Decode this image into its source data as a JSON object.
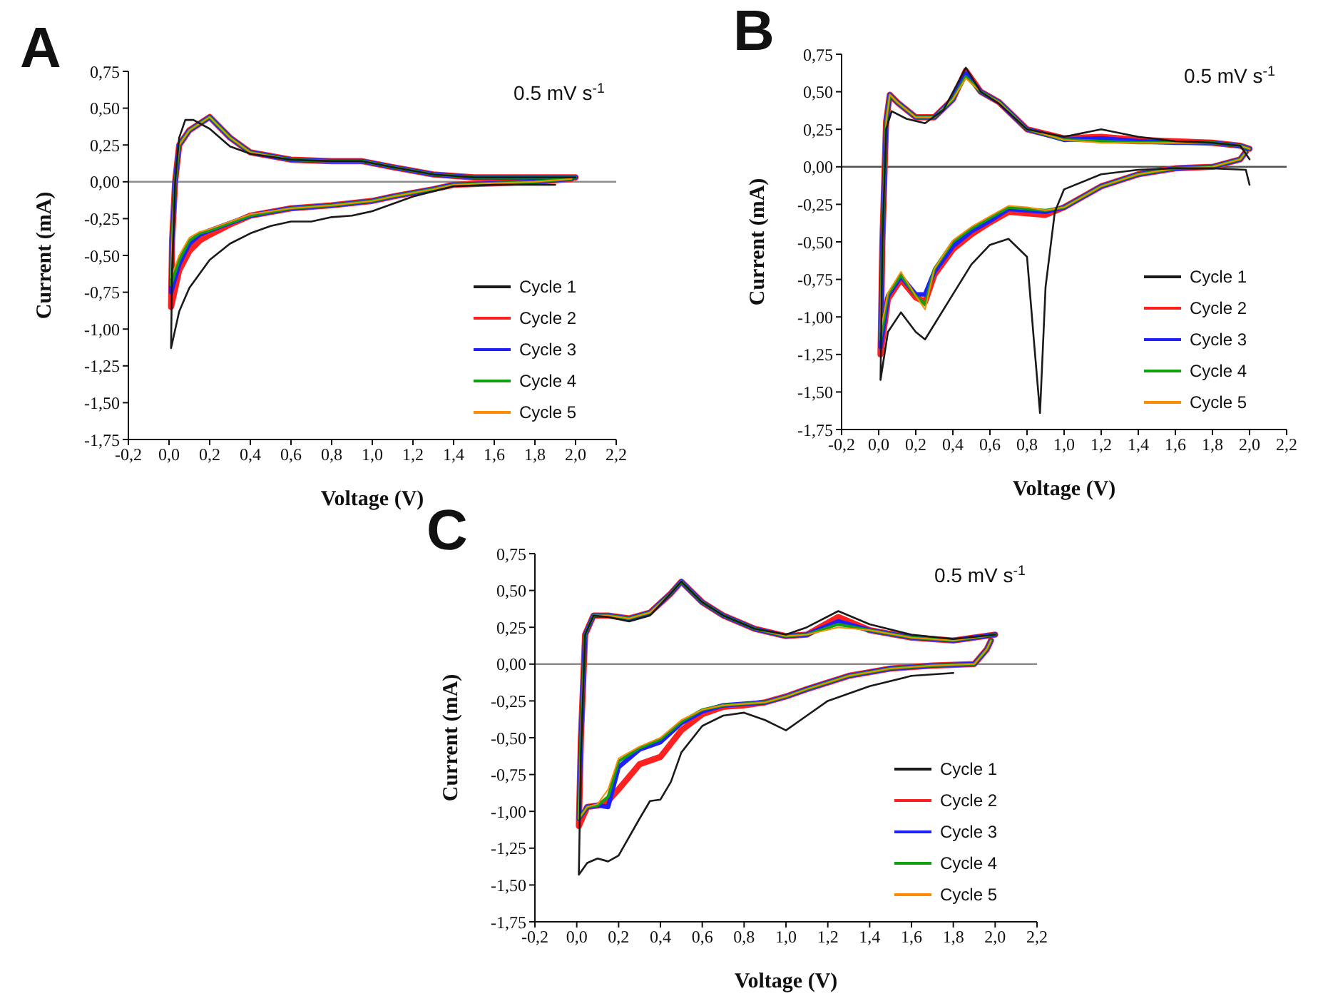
{
  "chart_data": [
    {
      "type": "line",
      "title": "A",
      "xlabel": "Voltage (V)",
      "ylabel": "Current (mA)",
      "annotations": [
        "0.5 mV s$^{-1}$"
      ],
      "legend": "bottom right",
      "xlim": [
        -0.2,
        2.2
      ],
      "xticks": [
        {
          "value": -0.2,
          "label": "-0,2"
        },
        {
          "value": 0,
          "label": "0,0"
        },
        {
          "value": 0.2,
          "label": "0,2"
        },
        {
          "value": 0.4,
          "label": "0,4"
        },
        {
          "value": 0.6,
          "label": "0,6"
        },
        {
          "value": 0.8,
          "label": "0,8"
        },
        {
          "value": 1.0,
          "label": "1,0"
        },
        {
          "value": 1.2,
          "label": "1,2"
        },
        {
          "value": 1.4,
          "label": "1,4"
        },
        {
          "value": 1.6,
          "label": "1,6"
        },
        {
          "value": 1.8,
          "label": "1,8"
        },
        {
          "value": 2.0,
          "label": "2,0"
        },
        {
          "value": 2.2,
          "label": "2,2"
        }
      ],
      "ylim": [
        -1.75,
        0.75
      ],
      "yticks": [
        {
          "value": -1.75,
          "label": "-1,75"
        },
        {
          "value": -1.5,
          "label": "-1,50"
        },
        {
          "value": -1.25,
          "label": "-1,25"
        },
        {
          "value": -1.0,
          "label": "-1,00"
        },
        {
          "value": -0.75,
          "label": "-0,75"
        },
        {
          "value": -0.5,
          "label": "-0,50"
        },
        {
          "value": -0.25,
          "label": "-0,25"
        },
        {
          "value": 0,
          "label": "0,00"
        },
        {
          "value": 0.25,
          "label": "0,25"
        },
        {
          "value": 0.5,
          "label": "0,50"
        },
        {
          "value": 0.75,
          "label": "0,75"
        }
      ],
      "ref_lines": [
        {
          "axis": "y",
          "value": 0,
          "color": "#8c8c8c"
        }
      ],
      "series": [
        {
          "name": "Cycle 1",
          "color": "#1a1a1a",
          "x": [
            1.9,
            1.6,
            1.4,
            1.2,
            1.1,
            1.0,
            0.9,
            0.8,
            0.7,
            0.6,
            0.5,
            0.4,
            0.3,
            0.2,
            0.1,
            0.05,
            0.01,
            0.015,
            0.03,
            0.05,
            0.08,
            0.12,
            0.2,
            0.3,
            0.4,
            0.6,
            0.8,
            0.95,
            1.1,
            1.3,
            1.5,
            1.8,
            2.0
          ],
          "values": [
            -0.02,
            -0.02,
            -0.03,
            -0.1,
            -0.15,
            -0.2,
            -0.23,
            -0.24,
            -0.27,
            -0.27,
            -0.3,
            -0.35,
            -0.42,
            -0.53,
            -0.72,
            -0.88,
            -1.13,
            -0.6,
            0.0,
            0.3,
            0.42,
            0.42,
            0.36,
            0.24,
            0.19,
            0.15,
            0.14,
            0.14,
            0.1,
            0.05,
            0.03,
            0.03,
            0.03
          ]
        },
        {
          "name": "Cycle 2",
          "color": "#ff2020",
          "x": [
            1.98,
            1.8,
            1.6,
            1.4,
            1.3,
            1.1,
            1.0,
            0.8,
            0.6,
            0.4,
            0.3,
            0.2,
            0.15,
            0.1,
            0.05,
            0.01,
            0.015,
            0.03,
            0.05,
            0.1,
            0.2,
            0.3,
            0.4,
            0.6,
            0.8,
            0.95,
            1.1,
            1.3,
            1.5,
            1.8,
            2.0
          ],
          "values": [
            0.02,
            0.0,
            -0.01,
            -0.02,
            -0.05,
            -0.1,
            -0.13,
            -0.16,
            -0.18,
            -0.23,
            -0.29,
            -0.36,
            -0.4,
            -0.47,
            -0.6,
            -0.85,
            -0.4,
            0.0,
            0.25,
            0.35,
            0.44,
            0.3,
            0.2,
            0.15,
            0.14,
            0.14,
            0.1,
            0.05,
            0.03,
            0.03,
            0.03
          ]
        },
        {
          "name": "Cycle 3",
          "color": "#2020ff",
          "x": [
            1.98,
            1.8,
            1.6,
            1.4,
            1.3,
            1.1,
            1.0,
            0.8,
            0.6,
            0.4,
            0.3,
            0.2,
            0.15,
            0.1,
            0.05,
            0.01,
            0.015,
            0.03,
            0.05,
            0.1,
            0.2,
            0.3,
            0.4,
            0.6,
            0.8,
            0.95,
            1.1,
            1.3,
            1.5,
            1.8,
            2.0
          ],
          "values": [
            0.02,
            0.0,
            -0.01,
            -0.02,
            -0.05,
            -0.1,
            -0.13,
            -0.16,
            -0.18,
            -0.23,
            -0.28,
            -0.33,
            -0.36,
            -0.42,
            -0.56,
            -0.75,
            -0.4,
            0.0,
            0.25,
            0.35,
            0.44,
            0.3,
            0.2,
            0.15,
            0.14,
            0.14,
            0.1,
            0.05,
            0.03,
            0.03,
            0.03
          ]
        },
        {
          "name": "Cycle 4",
          "color": "#10a010",
          "x": [
            1.98,
            1.8,
            1.6,
            1.4,
            1.3,
            1.1,
            1.0,
            0.8,
            0.6,
            0.4,
            0.3,
            0.2,
            0.15,
            0.1,
            0.05,
            0.01,
            0.015,
            0.03,
            0.05,
            0.1,
            0.2,
            0.3,
            0.4,
            0.6,
            0.8,
            0.95,
            1.1,
            1.3,
            1.5,
            1.8,
            2.0
          ],
          "values": [
            0.02,
            0.0,
            -0.01,
            -0.02,
            -0.05,
            -0.1,
            -0.13,
            -0.16,
            -0.18,
            -0.23,
            -0.28,
            -0.33,
            -0.35,
            -0.4,
            -0.53,
            -0.7,
            -0.4,
            0.0,
            0.25,
            0.35,
            0.44,
            0.3,
            0.2,
            0.15,
            0.14,
            0.14,
            0.1,
            0.05,
            0.03,
            0.03,
            0.03
          ]
        },
        {
          "name": "Cycle 5",
          "color": "#ff8c00",
          "x": [
            1.98,
            1.8,
            1.6,
            1.4,
            1.3,
            1.1,
            1.0,
            0.8,
            0.6,
            0.4,
            0.3,
            0.2,
            0.15,
            0.1,
            0.05,
            0.01,
            0.015,
            0.03,
            0.05,
            0.1,
            0.2,
            0.3,
            0.4,
            0.6,
            0.8,
            0.95,
            1.1,
            1.3,
            1.5,
            1.8,
            2.0
          ],
          "values": [
            0.02,
            0.0,
            -0.01,
            -0.02,
            -0.05,
            -0.1,
            -0.13,
            -0.16,
            -0.18,
            -0.22,
            -0.27,
            -0.32,
            -0.34,
            -0.38,
            -0.5,
            -0.65,
            -0.4,
            0.0,
            0.25,
            0.35,
            0.44,
            0.3,
            0.2,
            0.15,
            0.14,
            0.14,
            0.1,
            0.05,
            0.03,
            0.03,
            0.03
          ]
        }
      ]
    },
    {
      "type": "line",
      "title": "B",
      "xlabel": "Voltage (V)",
      "ylabel": "Current (mA)",
      "annotations": [
        "0.5 mV s$^{-1}$"
      ],
      "legend": "bottom right",
      "xlim": [
        -0.2,
        2.2
      ],
      "xticks": [
        {
          "value": -0.2,
          "label": "-0,2"
        },
        {
          "value": 0,
          "label": "0,0"
        },
        {
          "value": 0.2,
          "label": "0,2"
        },
        {
          "value": 0.4,
          "label": "0,4"
        },
        {
          "value": 0.6,
          "label": "0,6"
        },
        {
          "value": 0.8,
          "label": "0,8"
        },
        {
          "value": 1.0,
          "label": "1,0"
        },
        {
          "value": 1.2,
          "label": "1,2"
        },
        {
          "value": 1.4,
          "label": "1,4"
        },
        {
          "value": 1.6,
          "label": "1,6"
        },
        {
          "value": 1.8,
          "label": "1,8"
        },
        {
          "value": 2.0,
          "label": "2,0"
        },
        {
          "value": 2.2,
          "label": "2,2"
        }
      ],
      "ylim": [
        -1.75,
        0.75
      ],
      "yticks": [
        {
          "value": -1.75,
          "label": "-1,75"
        },
        {
          "value": -1.5,
          "label": "-1,50"
        },
        {
          "value": -1.25,
          "label": "-1,25"
        },
        {
          "value": -1.0,
          "label": "-1,00"
        },
        {
          "value": -0.75,
          "label": "-0,75"
        },
        {
          "value": -0.5,
          "label": "-0,50"
        },
        {
          "value": -0.25,
          "label": "-0,25"
        },
        {
          "value": 0,
          "label": "0,00"
        },
        {
          "value": 0.25,
          "label": "0,25"
        },
        {
          "value": 0.5,
          "label": "0,50"
        },
        {
          "value": 0.75,
          "label": "0,75"
        }
      ],
      "ref_lines": [
        {
          "axis": "y",
          "value": 0,
          "color": "#505050"
        }
      ],
      "series": [
        {
          "name": "Cycle 1",
          "color": "#1a1a1a",
          "x": [
            2.0,
            1.98,
            1.8,
            1.6,
            1.4,
            1.2,
            1.0,
            0.95,
            0.9,
            0.87,
            0.84,
            0.8,
            0.7,
            0.6,
            0.5,
            0.4,
            0.3,
            0.25,
            0.2,
            0.12,
            0.05,
            0.01,
            0.02,
            0.04,
            0.07,
            0.15,
            0.25,
            0.35,
            0.47,
            0.55,
            0.65,
            0.8,
            1.0,
            1.2,
            1.4,
            1.6,
            1.8,
            1.95,
            2.0
          ],
          "values": [
            -0.12,
            -0.02,
            -0.01,
            -0.01,
            -0.02,
            -0.05,
            -0.15,
            -0.3,
            -0.8,
            -1.64,
            -1.2,
            -0.6,
            -0.48,
            -0.52,
            -0.65,
            -0.85,
            -1.05,
            -1.15,
            -1.1,
            -0.97,
            -1.1,
            -1.42,
            -0.5,
            0.25,
            0.37,
            0.32,
            0.29,
            0.38,
            0.66,
            0.5,
            0.42,
            0.25,
            0.2,
            0.25,
            0.2,
            0.17,
            0.16,
            0.14,
            0.05
          ]
        },
        {
          "name": "Cycle 2",
          "color": "#ff2020",
          "x": [
            1.98,
            1.95,
            1.8,
            1.6,
            1.4,
            1.2,
            1.0,
            0.9,
            0.8,
            0.7,
            0.6,
            0.5,
            0.4,
            0.3,
            0.25,
            0.2,
            0.12,
            0.05,
            0.01,
            0.02,
            0.04,
            0.06,
            0.1,
            0.2,
            0.3,
            0.4,
            0.47,
            0.55,
            0.65,
            0.8,
            1.0,
            1.2,
            1.4,
            1.6,
            1.8,
            1.95,
            2.0
          ],
          "values": [
            0.1,
            0.05,
            0.0,
            -0.01,
            -0.05,
            -0.13,
            -0.27,
            -0.32,
            -0.31,
            -0.3,
            -0.37,
            -0.45,
            -0.55,
            -0.72,
            -0.9,
            -0.87,
            -0.75,
            -0.88,
            -1.25,
            -0.5,
            0.3,
            0.48,
            0.43,
            0.33,
            0.33,
            0.45,
            0.64,
            0.5,
            0.43,
            0.25,
            0.19,
            0.2,
            0.18,
            0.17,
            0.16,
            0.14,
            0.12
          ]
        },
        {
          "name": "Cycle 3",
          "color": "#2020ff",
          "x": [
            1.98,
            1.95,
            1.8,
            1.6,
            1.4,
            1.2,
            1.0,
            0.9,
            0.8,
            0.7,
            0.6,
            0.5,
            0.4,
            0.3,
            0.25,
            0.2,
            0.12,
            0.05,
            0.01,
            0.02,
            0.04,
            0.06,
            0.1,
            0.2,
            0.3,
            0.4,
            0.47,
            0.55,
            0.65,
            0.8,
            1.0,
            1.2,
            1.4,
            1.6,
            1.8,
            1.95,
            2.0
          ],
          "values": [
            0.1,
            0.05,
            0.0,
            -0.01,
            -0.05,
            -0.13,
            -0.27,
            -0.3,
            -0.29,
            -0.28,
            -0.36,
            -0.43,
            -0.53,
            -0.7,
            -0.85,
            -0.85,
            -0.73,
            -0.86,
            -1.2,
            -0.5,
            0.3,
            0.48,
            0.43,
            0.33,
            0.33,
            0.45,
            0.62,
            0.5,
            0.43,
            0.25,
            0.18,
            0.19,
            0.17,
            0.16,
            0.16,
            0.14,
            0.12
          ]
        },
        {
          "name": "Cycle 4",
          "color": "#10a010",
          "x": [
            1.98,
            1.95,
            1.8,
            1.6,
            1.4,
            1.2,
            1.0,
            0.9,
            0.8,
            0.7,
            0.6,
            0.5,
            0.4,
            0.3,
            0.25,
            0.2,
            0.12,
            0.05,
            0.01,
            0.02,
            0.04,
            0.06,
            0.1,
            0.2,
            0.3,
            0.4,
            0.47,
            0.55,
            0.65,
            0.8,
            1.0,
            1.2,
            1.4,
            1.6,
            1.8,
            1.95,
            2.0
          ],
          "values": [
            0.1,
            0.05,
            0.0,
            -0.01,
            -0.05,
            -0.13,
            -0.27,
            -0.29,
            -0.28,
            -0.27,
            -0.34,
            -0.41,
            -0.5,
            -0.68,
            -0.92,
            -0.86,
            -0.72,
            -0.85,
            -1.15,
            -0.5,
            0.3,
            0.48,
            0.43,
            0.33,
            0.33,
            0.45,
            0.6,
            0.5,
            0.43,
            0.25,
            0.18,
            0.17,
            0.16,
            0.16,
            0.16,
            0.14,
            0.12
          ]
        },
        {
          "name": "Cycle 5",
          "color": "#ff8c00",
          "x": [
            1.98,
            1.95,
            1.8,
            1.6,
            1.4,
            1.2,
            1.0,
            0.9,
            0.8,
            0.7,
            0.6,
            0.5,
            0.4,
            0.3,
            0.25,
            0.2,
            0.12,
            0.05,
            0.01,
            0.02,
            0.04,
            0.06,
            0.1,
            0.2,
            0.3,
            0.4,
            0.47,
            0.55,
            0.65,
            0.8,
            1.0,
            1.2,
            1.4,
            1.6,
            1.8,
            1.95,
            2.0
          ],
          "values": [
            0.1,
            0.05,
            0.0,
            -0.01,
            -0.05,
            -0.13,
            -0.27,
            -0.29,
            -0.27,
            -0.26,
            -0.33,
            -0.4,
            -0.49,
            -0.68,
            -0.95,
            -0.86,
            -0.7,
            -0.84,
            -1.1,
            -0.5,
            0.3,
            0.48,
            0.43,
            0.33,
            0.33,
            0.45,
            0.59,
            0.5,
            0.43,
            0.25,
            0.18,
            0.16,
            0.16,
            0.16,
            0.16,
            0.14,
            0.12
          ]
        }
      ]
    },
    {
      "type": "line",
      "title": "C",
      "xlabel": "Voltage (V)",
      "ylabel": "Current (mA)",
      "annotations": [
        "0.5 mV s$^{-1}$"
      ],
      "legend": "bottom right",
      "xlim": [
        -0.2,
        2.2
      ],
      "xticks": [
        {
          "value": -0.2,
          "label": "-0,2"
        },
        {
          "value": 0,
          "label": "0,0"
        },
        {
          "value": 0.2,
          "label": "0,2"
        },
        {
          "value": 0.4,
          "label": "0,4"
        },
        {
          "value": 0.6,
          "label": "0,6"
        },
        {
          "value": 0.8,
          "label": "0,8"
        },
        {
          "value": 1.0,
          "label": "1,0"
        },
        {
          "value": 1.2,
          "label": "1,2"
        },
        {
          "value": 1.4,
          "label": "1,4"
        },
        {
          "value": 1.6,
          "label": "1,6"
        },
        {
          "value": 1.8,
          "label": "1,8"
        },
        {
          "value": 2.0,
          "label": "2,0"
        },
        {
          "value": 2.2,
          "label": "2,2"
        }
      ],
      "ylim": [
        -1.75,
        0.75
      ],
      "yticks": [
        {
          "value": -1.75,
          "label": "-1,75"
        },
        {
          "value": -1.5,
          "label": "-1,50"
        },
        {
          "value": -1.25,
          "label": "-1,25"
        },
        {
          "value": -1.0,
          "label": "-1,00"
        },
        {
          "value": -0.75,
          "label": "-0,75"
        },
        {
          "value": -0.5,
          "label": "-0,50"
        },
        {
          "value": -0.25,
          "label": "-0,25"
        },
        {
          "value": 0,
          "label": "0,00"
        },
        {
          "value": 0.25,
          "label": "0,25"
        },
        {
          "value": 0.5,
          "label": "0,50"
        },
        {
          "value": 0.75,
          "label": "0,75"
        }
      ],
      "ref_lines": [
        {
          "axis": "y",
          "value": 0,
          "color": "#8c8c8c"
        }
      ],
      "series": [
        {
          "name": "Cycle 1",
          "color": "#1a1a1a",
          "x": [
            1.8,
            1.6,
            1.4,
            1.2,
            1.1,
            1.0,
            0.9,
            0.8,
            0.7,
            0.6,
            0.5,
            0.45,
            0.4,
            0.35,
            0.3,
            0.2,
            0.15,
            0.1,
            0.05,
            0.01,
            0.02,
            0.04,
            0.08,
            0.15,
            0.25,
            0.35,
            0.45,
            0.5,
            0.6,
            0.7,
            0.85,
            1.0,
            1.1,
            1.25,
            1.4,
            1.6,
            1.8,
            2.0
          ],
          "values": [
            -0.06,
            -0.08,
            -0.15,
            -0.25,
            -0.35,
            -0.45,
            -0.38,
            -0.33,
            -0.35,
            -0.42,
            -0.6,
            -0.8,
            -0.92,
            -0.93,
            -1.05,
            -1.3,
            -1.34,
            -1.32,
            -1.35,
            -1.43,
            -0.6,
            0.2,
            0.33,
            0.32,
            0.29,
            0.33,
            0.48,
            0.56,
            0.42,
            0.33,
            0.24,
            0.2,
            0.25,
            0.36,
            0.27,
            0.2,
            0.17,
            0.2
          ]
        },
        {
          "name": "Cycle 2",
          "color": "#ff2020",
          "x": [
            1.98,
            1.96,
            1.9,
            1.7,
            1.5,
            1.3,
            1.1,
            1.0,
            0.9,
            0.8,
            0.7,
            0.6,
            0.5,
            0.4,
            0.3,
            0.2,
            0.15,
            0.1,
            0.05,
            0.01,
            0.02,
            0.04,
            0.08,
            0.15,
            0.25,
            0.35,
            0.45,
            0.5,
            0.6,
            0.7,
            0.85,
            1.0,
            1.1,
            1.25,
            1.4,
            1.6,
            1.8,
            2.0
          ],
          "values": [
            0.16,
            0.1,
            0.0,
            -0.01,
            -0.03,
            -0.08,
            -0.17,
            -0.22,
            -0.26,
            -0.28,
            -0.29,
            -0.34,
            -0.45,
            -0.63,
            -0.68,
            -0.85,
            -0.93,
            -0.96,
            -0.97,
            -1.1,
            -0.5,
            0.2,
            0.33,
            0.33,
            0.31,
            0.35,
            0.48,
            0.56,
            0.42,
            0.33,
            0.24,
            0.19,
            0.2,
            0.32,
            0.23,
            0.18,
            0.16,
            0.2
          ]
        },
        {
          "name": "Cycle 3",
          "color": "#2020ff",
          "x": [
            1.98,
            1.96,
            1.9,
            1.7,
            1.5,
            1.3,
            1.1,
            1.0,
            0.9,
            0.8,
            0.7,
            0.6,
            0.5,
            0.4,
            0.3,
            0.2,
            0.15,
            0.1,
            0.05,
            0.01,
            0.02,
            0.04,
            0.08,
            0.15,
            0.25,
            0.35,
            0.45,
            0.5,
            0.6,
            0.7,
            0.85,
            1.0,
            1.1,
            1.25,
            1.4,
            1.6,
            1.8,
            2.0
          ],
          "values": [
            0.16,
            0.1,
            0.0,
            -0.01,
            -0.03,
            -0.08,
            -0.17,
            -0.22,
            -0.26,
            -0.27,
            -0.28,
            -0.32,
            -0.4,
            -0.53,
            -0.58,
            -0.7,
            -0.97,
            -0.96,
            -0.97,
            -1.05,
            -0.5,
            0.2,
            0.33,
            0.33,
            0.31,
            0.35,
            0.48,
            0.56,
            0.42,
            0.33,
            0.24,
            0.19,
            0.2,
            0.29,
            0.23,
            0.18,
            0.16,
            0.2
          ]
        },
        {
          "name": "Cycle 4",
          "color": "#10a010",
          "x": [
            1.98,
            1.96,
            1.9,
            1.7,
            1.5,
            1.3,
            1.1,
            1.0,
            0.9,
            0.8,
            0.7,
            0.6,
            0.5,
            0.4,
            0.3,
            0.2,
            0.15,
            0.1,
            0.05,
            0.01,
            0.02,
            0.04,
            0.08,
            0.15,
            0.25,
            0.35,
            0.45,
            0.5,
            0.6,
            0.7,
            0.85,
            1.0,
            1.1,
            1.25,
            1.4,
            1.6,
            1.8,
            2.0
          ],
          "values": [
            0.16,
            0.1,
            0.0,
            -0.01,
            -0.03,
            -0.08,
            -0.17,
            -0.22,
            -0.26,
            -0.27,
            -0.28,
            -0.31,
            -0.39,
            -0.51,
            -0.57,
            -0.66,
            -0.9,
            -0.96,
            -0.97,
            -1.05,
            -0.5,
            0.2,
            0.33,
            0.33,
            0.31,
            0.35,
            0.48,
            0.56,
            0.42,
            0.33,
            0.24,
            0.19,
            0.2,
            0.27,
            0.23,
            0.18,
            0.16,
            0.2
          ]
        },
        {
          "name": "Cycle 5",
          "color": "#ff8c00",
          "x": [
            1.98,
            1.96,
            1.9,
            1.7,
            1.5,
            1.3,
            1.1,
            1.0,
            0.9,
            0.8,
            0.7,
            0.6,
            0.5,
            0.4,
            0.3,
            0.2,
            0.15,
            0.1,
            0.05,
            0.01,
            0.02,
            0.04,
            0.08,
            0.15,
            0.25,
            0.35,
            0.45,
            0.5,
            0.6,
            0.7,
            0.85,
            1.0,
            1.1,
            1.25,
            1.4,
            1.6,
            1.8,
            2.0
          ],
          "values": [
            0.16,
            0.1,
            0.0,
            -0.01,
            -0.03,
            -0.08,
            -0.17,
            -0.22,
            -0.26,
            -0.27,
            -0.28,
            -0.31,
            -0.38,
            -0.5,
            -0.56,
            -0.64,
            -0.85,
            -0.95,
            -0.97,
            -1.05,
            -0.5,
            0.2,
            0.33,
            0.33,
            0.31,
            0.35,
            0.48,
            0.56,
            0.42,
            0.33,
            0.24,
            0.19,
            0.2,
            0.25,
            0.23,
            0.18,
            0.16,
            0.2
          ]
        }
      ]
    }
  ]
}
